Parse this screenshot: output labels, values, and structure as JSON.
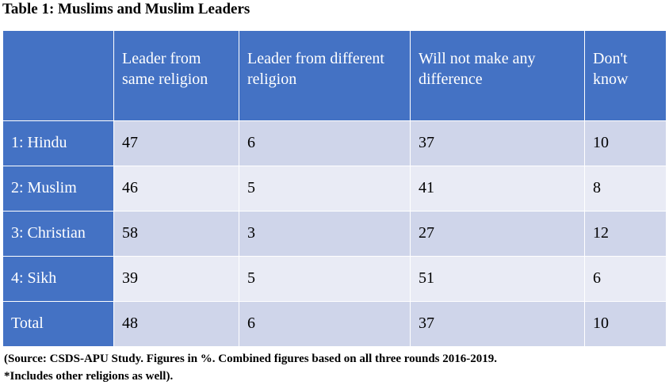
{
  "title": "Table 1: Muslims and Muslim Leaders",
  "table": {
    "headers": [
      "",
      "Leader from same religion",
      "Leader from different religion",
      "Will not make any difference",
      "Don't know"
    ],
    "rows": [
      {
        "label": "1: Hindu",
        "values": [
          "47",
          "6",
          "37",
          "10"
        ]
      },
      {
        "label": "2: Muslim",
        "values": [
          "46",
          "5",
          "41",
          "8"
        ]
      },
      {
        "label": "3: Christian",
        "values": [
          "58",
          "3",
          "27",
          "12"
        ]
      },
      {
        "label": "4: Sikh",
        "values": [
          "39",
          "5",
          "51",
          "6"
        ]
      },
      {
        "label": "Total",
        "values": [
          "48",
          "6",
          "37",
          "10"
        ]
      }
    ]
  },
  "source": {
    "line1": " (Source: CSDS-APU Study. Figures in %. Combined figures based on all three rounds 2016-2019.",
    "line2": "*Includes other religions as well)."
  },
  "colors": {
    "header_bg": "#4472c4",
    "row_odd_bg": "#cfd5ea",
    "row_even_bg": "#e9ebf5"
  }
}
